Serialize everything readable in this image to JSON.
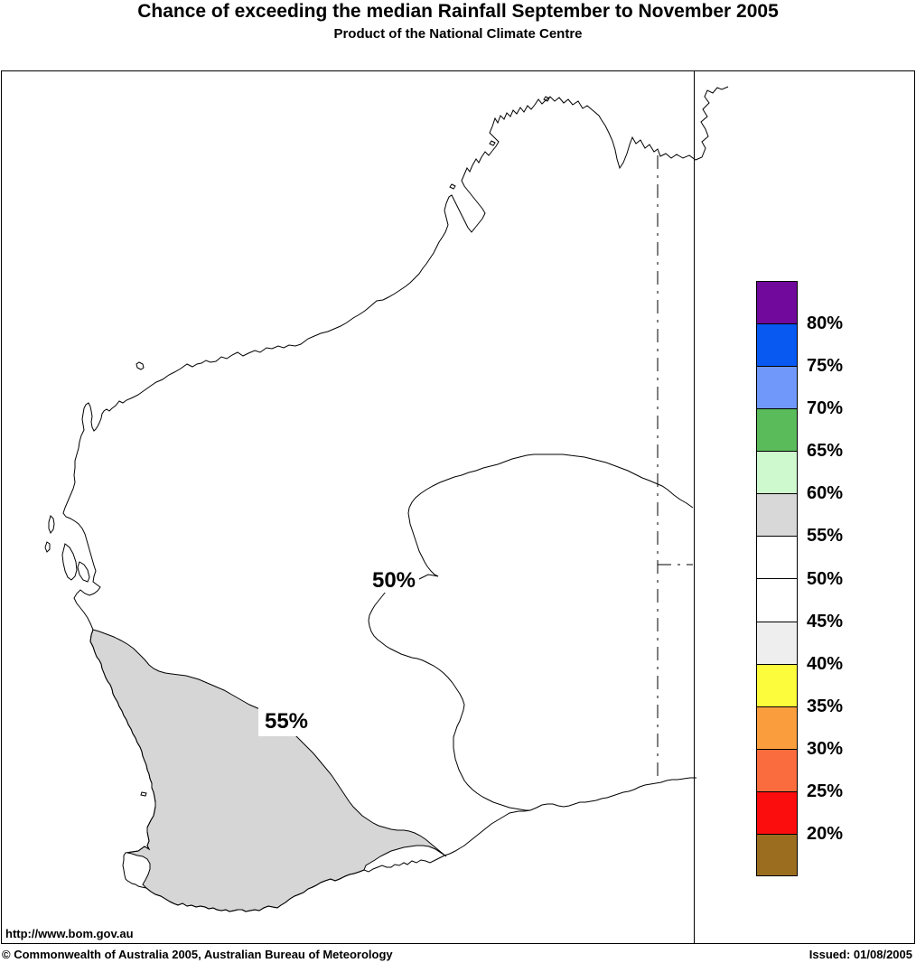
{
  "header": {
    "title": "Chance of exceeding the median Rainfall September to November 2005",
    "subtitle": "Product of the National Climate Centre"
  },
  "map": {
    "contour_labels": {
      "contour_50": "50%",
      "contour_55": "55%"
    },
    "url_label": "http://www.bom.gov.au",
    "colors": {
      "shaded_region_55_60": "#D6D6D6",
      "coastline": "#000000",
      "background": "#FFFFFF"
    }
  },
  "legend": {
    "colors": [
      "#70099C",
      "#0859F2",
      "#7097FA",
      "#5ABB5A",
      "#CEF8CE",
      "#D8D8D8",
      "#FFFFFF",
      "#FFFFFF",
      "#EEEEEE",
      "#FCFB3C",
      "#FA9E3D",
      "#FA6B3D",
      "#FB0D0D",
      "#9B6D1F"
    ],
    "boundary_labels": [
      "80%",
      "75%",
      "70%",
      "65%",
      "60%",
      "55%",
      "50%",
      "45%",
      "40%",
      "35%",
      "30%",
      "25%",
      "20%"
    ]
  },
  "footer": {
    "copyright": "© Commonwealth of Australia 2005, Australian Bureau of Meteorology",
    "issued": "Issued: 01/08/2005"
  }
}
